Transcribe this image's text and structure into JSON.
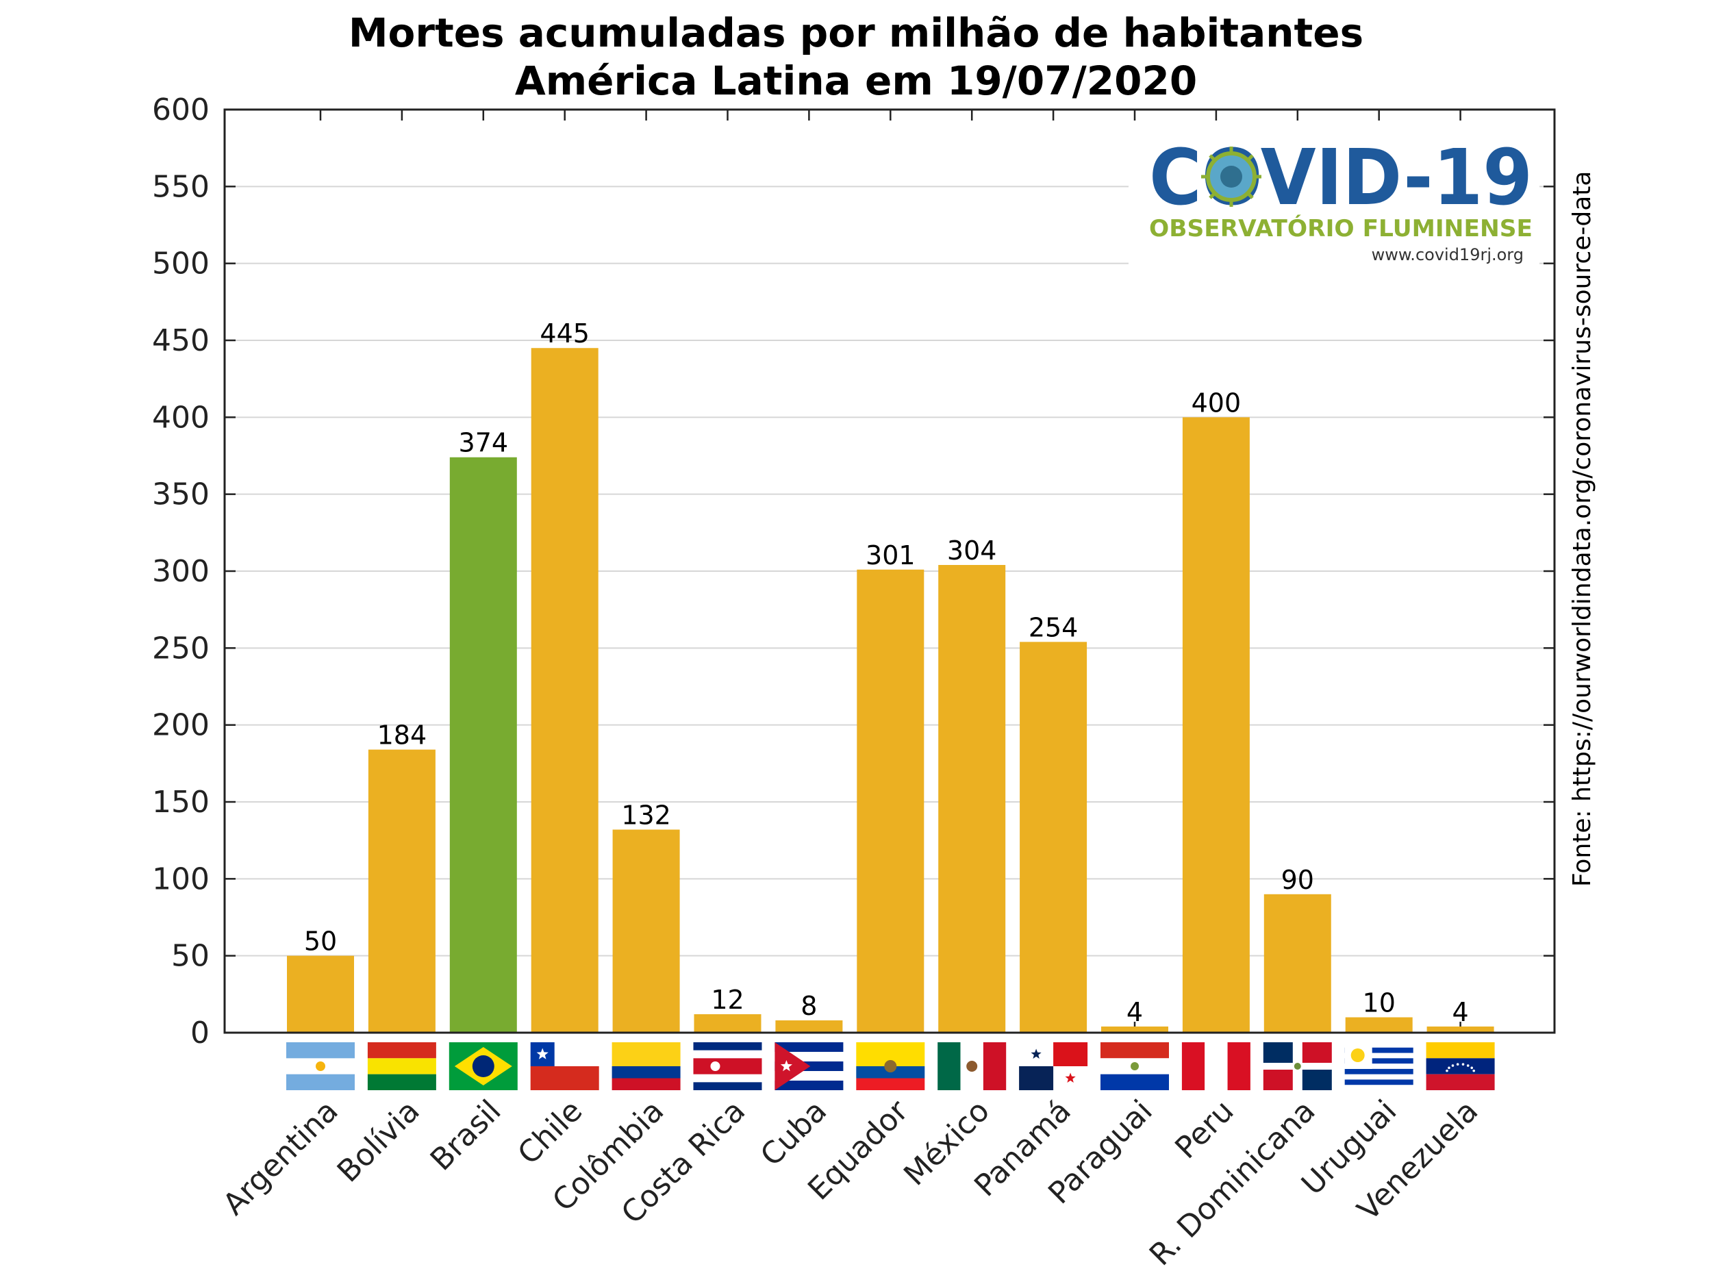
{
  "chart_data": {
    "type": "bar",
    "title": "Mortes acumuladas por milhão de habitantes",
    "subtitle": "América Latina em 19/07/2020",
    "categories": [
      "Argentina",
      "Bolívia",
      "Brasil",
      "Chile",
      "Colômbia",
      "Costa Rica",
      "Cuba",
      "Equador",
      "México",
      "Panamá",
      "Paraguai",
      "Peru",
      "R. Dominicana",
      "Uruguai",
      "Venezuela"
    ],
    "values": [
      50,
      184,
      374,
      445,
      132,
      12,
      8,
      301,
      304,
      254,
      4,
      400,
      90,
      10,
      4
    ],
    "highlight": "Brasil",
    "ylim": [
      0,
      600
    ],
    "yticks": [
      0,
      50,
      100,
      150,
      200,
      250,
      300,
      350,
      400,
      450,
      500,
      550,
      600
    ],
    "grid": true,
    "source": "Fonte: https://ourworldindata.org/coronavirus-source-data",
    "colors": {
      "bar": "#ebb022",
      "highlight": "#78ab30",
      "grid": "#d6d6d6"
    }
  },
  "logo": {
    "main": "COVID-19",
    "subtitle": "OBSERVATÓRIO FLUMINENSE",
    "url": "www.covid19rj.org"
  },
  "flags": [
    "argentina-flag-icon",
    "bolivia-flag-icon",
    "brazil-flag-icon",
    "chile-flag-icon",
    "colombia-flag-icon",
    "costa-rica-flag-icon",
    "cuba-flag-icon",
    "ecuador-flag-icon",
    "mexico-flag-icon",
    "panama-flag-icon",
    "paraguay-flag-icon",
    "peru-flag-icon",
    "dominican-republic-flag-icon",
    "uruguay-flag-icon",
    "venezuela-flag-icon"
  ]
}
